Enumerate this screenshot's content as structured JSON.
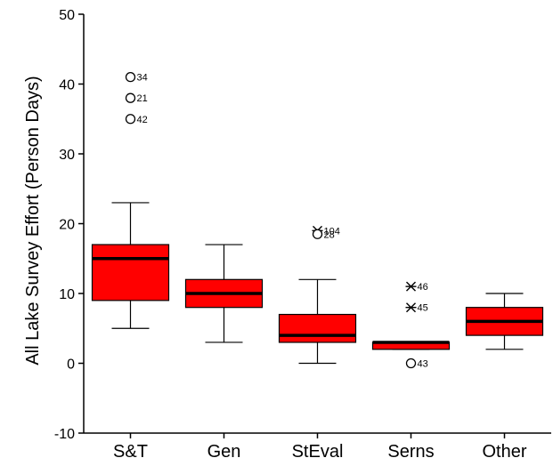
{
  "chart_data": {
    "type": "boxplot",
    "title": "",
    "xlabel": "",
    "ylabel": "All Lake Survey Effort (Person Days)",
    "ylim": [
      -10,
      50
    ],
    "yticks": [
      -10,
      0,
      10,
      20,
      30,
      40,
      50
    ],
    "grid": false,
    "legend": "none",
    "box_color": "#ff0000",
    "median_color": "#000000",
    "categories": [
      "S&T",
      "Gen",
      "StEval",
      "Serns",
      "Other"
    ],
    "boxes": [
      {
        "category": "S&T",
        "whisker_low": 5,
        "q1": 9,
        "median": 15,
        "q3": 17,
        "whisker_high": 23,
        "outliers": [
          {
            "value": 41,
            "label": "34",
            "marker": "circle"
          },
          {
            "value": 38,
            "label": "21",
            "marker": "circle"
          },
          {
            "value": 35,
            "label": "42",
            "marker": "circle"
          }
        ]
      },
      {
        "category": "Gen",
        "whisker_low": 3,
        "q1": 8,
        "median": 10,
        "q3": 12,
        "whisker_high": 17,
        "outliers": []
      },
      {
        "category": "StEval",
        "whisker_low": 0,
        "q1": 3,
        "median": 4,
        "q3": 7,
        "whisker_high": 12,
        "outliers": [
          {
            "value": 19,
            "label": "104",
            "marker": "star"
          },
          {
            "value": 18.5,
            "label": "28",
            "marker": "circle"
          }
        ]
      },
      {
        "category": "Serns",
        "whisker_low": 2,
        "q1": 2,
        "median": 3,
        "q3": 3,
        "whisker_high": 3,
        "outliers": [
          {
            "value": 11,
            "label": "46",
            "marker": "star"
          },
          {
            "value": 8,
            "label": "45",
            "marker": "star"
          },
          {
            "value": 0,
            "label": "43",
            "marker": "circle"
          }
        ]
      },
      {
        "category": "Other",
        "whisker_low": 2,
        "q1": 4,
        "median": 6,
        "q3": 8,
        "whisker_high": 10,
        "outliers": []
      }
    ]
  }
}
